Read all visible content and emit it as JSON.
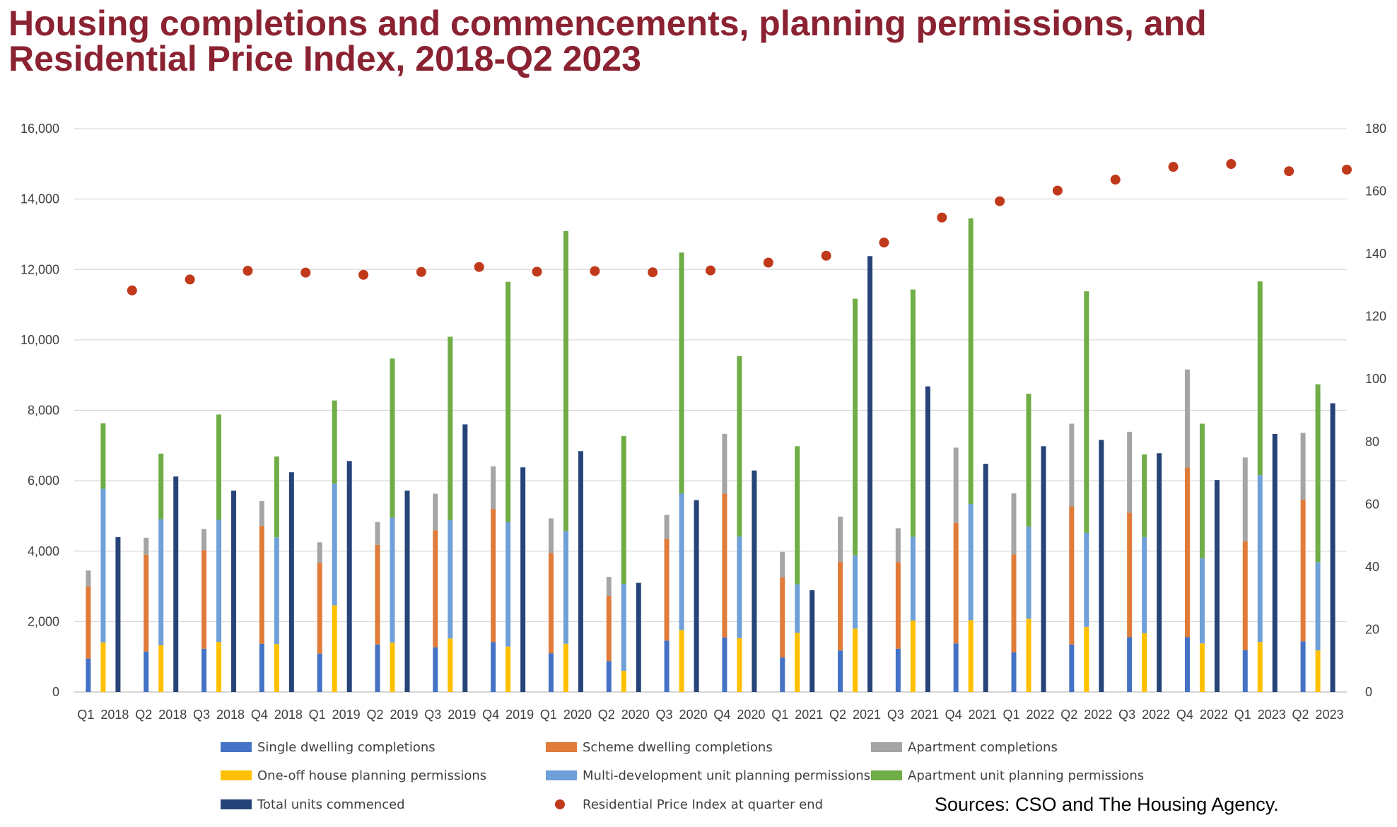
{
  "title_lines": [
    "Housing completions and commencements, planning permissions, and",
    "Residential Price Index, 2018-Q2 2023"
  ],
  "source": "Sources: CSO and The Housing Agency.",
  "colors": {
    "title": "#8b2232",
    "single": "#4472c4",
    "scheme": "#e07b39",
    "apartment_completions": "#a5a5a5",
    "oneoff": "#ffc000",
    "multidev": "#6fa0d8",
    "apartment_permissions": "#70ad47",
    "commenced": "#264478",
    "rpi": "#c0391b"
  },
  "chart_data": {
    "type": "bar",
    "categories": [
      "Q1 2018",
      "Q2 2018",
      "Q3 2018",
      "Q4 2018",
      "Q1 2019",
      "Q2 2019",
      "Q3 2019",
      "Q4 2019",
      "Q1 2020",
      "Q2 2020",
      "Q3 2020",
      "Q4 2020",
      "Q1 2021",
      "Q2 2021",
      "Q3 2021",
      "Q4 2021",
      "Q1 2022",
      "Q2 2022",
      "Q3 2022",
      "Q4 2022",
      "Q1 2023",
      "Q2 2023"
    ],
    "y_left": {
      "min": 0,
      "max": 16000,
      "ticks": [
        "0",
        "2,000",
        "4,000",
        "6,000",
        "8,000",
        "10,000",
        "12,000",
        "14,000",
        "16,000"
      ]
    },
    "y_right": {
      "min": 0,
      "max": 180,
      "ticks": [
        "0",
        "20",
        "40",
        "60",
        "80",
        "100",
        "120",
        "140",
        "160",
        "180"
      ]
    },
    "grid": true,
    "legend_position": "bottom",
    "stacks": [
      {
        "stack": "completions",
        "series": [
          {
            "name": "Single dwelling completions",
            "color_key": "single",
            "values": [
              950,
              1150,
              1230,
              1370,
              1090,
              1350,
              1270,
              1420,
              1100,
              880,
              1460,
              1550,
              980,
              1180,
              1230,
              1380,
              1130,
              1350,
              1560,
              1560,
              1190,
              1440
            ]
          },
          {
            "name": "Scheme dwelling completions",
            "color_key": "scheme",
            "values": [
              2050,
              2750,
              2800,
              3350,
              2580,
              2830,
              3320,
              3780,
              2850,
              1850,
              2890,
              4080,
              2280,
              2520,
              2460,
              3420,
              2780,
              3920,
              3530,
              4820,
              3090,
              4020
            ]
          },
          {
            "name": "Apartment completions",
            "color_key": "apartment_completions",
            "values": [
              450,
              480,
              600,
              700,
              580,
              650,
              1040,
              1210,
              980,
              540,
              680,
              1700,
              720,
              1280,
              960,
              2140,
              1730,
              2350,
              2300,
              2780,
              2380,
              1900
            ]
          }
        ]
      },
      {
        "stack": "permissions",
        "series": [
          {
            "name": "One-off house planning permissions",
            "color_key": "oneoff",
            "values": [
              1410,
              1330,
              1420,
              1360,
              2460,
              1400,
              1520,
              1290,
              1370,
              600,
              1760,
              1530,
              1680,
              1800,
              2030,
              2040,
              2080,
              1850,
              1670,
              1380,
              1420,
              1180
            ]
          },
          {
            "name": "Multi-development unit planning permissions",
            "color_key": "multidev",
            "values": [
              4360,
              3580,
              3470,
              3030,
              3460,
              3550,
              3360,
              3540,
              3200,
              2470,
              3880,
              2890,
              1380,
              2080,
              2380,
              3300,
              2620,
              2670,
              2730,
              2420,
              4740,
              2510
            ]
          },
          {
            "name": "Apartment unit planning permissions",
            "color_key": "apartment_permissions",
            "values": [
              1860,
              1860,
              2990,
              2300,
              2360,
              4520,
              5210,
              6820,
              8520,
              4200,
              6840,
              5120,
              3920,
              7290,
              7020,
              8110,
              3770,
              6860,
              2350,
              3820,
              5500,
              5050
            ]
          }
        ]
      },
      {
        "stack": "commenced",
        "series": [
          {
            "name": "Total units commenced",
            "color_key": "commenced",
            "values": [
              4400,
              6120,
              5720,
              6240,
              6560,
              5720,
              7600,
              6380,
              6840,
              3100,
              5450,
              6290,
              2890,
              12380,
              8680,
              6480,
              6980,
              7160,
              6780,
              6020,
              7330,
              8200
            ]
          }
        ]
      }
    ],
    "line_series": {
      "name": "Residential Price Index at quarter end",
      "color_key": "rpi",
      "axis": "right",
      "values": [
        128.3,
        131.8,
        134.6,
        134,
        133.3,
        134.2,
        135.8,
        134.3,
        134.5,
        134.1,
        134.7,
        137.2,
        139.4,
        143.6,
        151.6,
        156.8,
        160.2,
        163.7,
        167.8,
        168.7,
        166.4,
        166.9
      ]
    },
    "legend_order": [
      "Single dwelling completions",
      "Scheme dwelling completions",
      "Apartment completions",
      "One-off house planning permissions",
      "Multi-development unit planning permissions",
      "Apartment unit planning permissions",
      "Total units commenced",
      "Residential Price Index at quarter end"
    ]
  }
}
